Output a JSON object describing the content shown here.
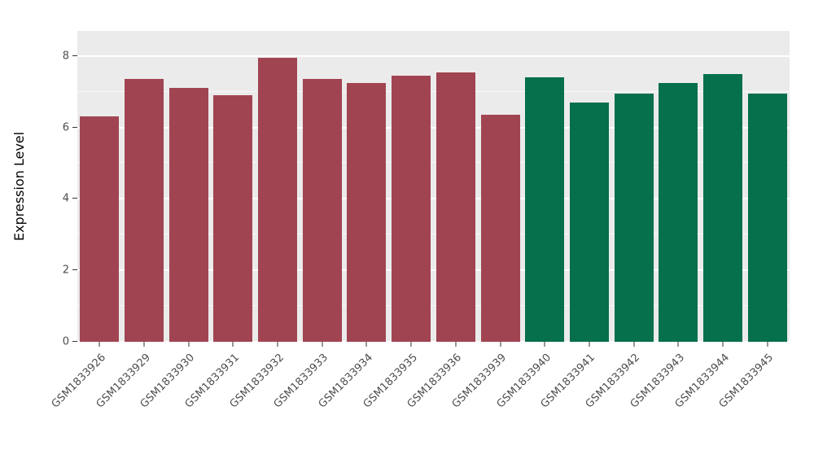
{
  "chart_data": {
    "type": "bar",
    "title": "",
    "xlabel": "",
    "ylabel": "Expression Level",
    "ylim": [
      0,
      8.7
    ],
    "yticks": [
      0,
      2,
      4,
      6,
      8
    ],
    "yticks_minor": [
      1,
      3,
      5,
      7
    ],
    "grid": "on",
    "legend": "none",
    "panel_background": "#EBEBEB",
    "gridline_color": "#FFFFFF",
    "colors": {
      "group1": "#A14451",
      "group2": "#066F4B"
    },
    "categories": [
      "GSM1833926",
      "GSM1833929",
      "GSM1833930",
      "GSM1833931",
      "GSM1833932",
      "GSM1833933",
      "GSM1833934",
      "GSM1833935",
      "GSM1833936",
      "GSM1833939",
      "GSM1833940",
      "GSM1833941",
      "GSM1833942",
      "GSM1833943",
      "GSM1833944",
      "GSM1833945"
    ],
    "bars": [
      {
        "label": "GSM1833926",
        "value": 6.3,
        "group": "group1"
      },
      {
        "label": "GSM1833929",
        "value": 7.35,
        "group": "group1"
      },
      {
        "label": "GSM1833930",
        "value": 7.1,
        "group": "group1"
      },
      {
        "label": "GSM1833931",
        "value": 6.9,
        "group": "group1"
      },
      {
        "label": "GSM1833932",
        "value": 7.95,
        "group": "group1"
      },
      {
        "label": "GSM1833933",
        "value": 7.35,
        "group": "group1"
      },
      {
        "label": "GSM1833934",
        "value": 7.25,
        "group": "group1"
      },
      {
        "label": "GSM1833935",
        "value": 7.45,
        "group": "group1"
      },
      {
        "label": "GSM1833936",
        "value": 7.55,
        "group": "group1"
      },
      {
        "label": "GSM1833939",
        "value": 6.35,
        "group": "group1"
      },
      {
        "label": "GSM1833940",
        "value": 7.4,
        "group": "group2"
      },
      {
        "label": "GSM1833941",
        "value": 6.7,
        "group": "group2"
      },
      {
        "label": "GSM1833942",
        "value": 6.95,
        "group": "group2"
      },
      {
        "label": "GSM1833943",
        "value": 7.25,
        "group": "group2"
      },
      {
        "label": "GSM1833944",
        "value": 7.5,
        "group": "group2"
      },
      {
        "label": "GSM1833945",
        "value": 6.95,
        "group": "group2"
      }
    ]
  }
}
